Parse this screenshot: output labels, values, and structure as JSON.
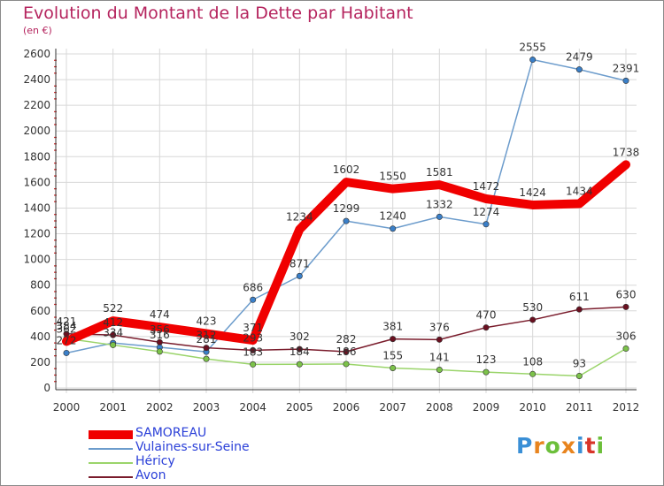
{
  "title": "Evolution du Montant de la Dette par Habitant",
  "unit": "(en €)",
  "logo": {
    "text": "Proxiti",
    "letters": [
      {
        "ch": "P",
        "color": "#3a8fd6"
      },
      {
        "ch": "r",
        "color": "#e8841e"
      },
      {
        "ch": "o",
        "color": "#6cbf3a"
      },
      {
        "ch": "x",
        "color": "#e8841e"
      },
      {
        "ch": "i",
        "color": "#3a8fd6"
      },
      {
        "ch": "t",
        "color": "#d8352a"
      },
      {
        "ch": "i",
        "color": "#6cbf3a"
      }
    ]
  },
  "chart_data": {
    "type": "line",
    "title": "Evolution du Montant de la Dette par Habitant",
    "ylabel": "(en €)",
    "x": [
      "2000",
      "2001",
      "2002",
      "2003",
      "2004",
      "2005",
      "2006",
      "2007",
      "2008",
      "2009",
      "2010",
      "2011",
      "2012"
    ],
    "ylim": [
      0,
      2600
    ],
    "yticks": [
      0,
      200,
      400,
      600,
      800,
      1000,
      1200,
      1400,
      1600,
      1800,
      2000,
      2200,
      2400,
      2600
    ],
    "grid": true,
    "legend_position": "bottom-left",
    "series": [
      {
        "name": "SAMOREAU",
        "color": "#f00000",
        "width": 10,
        "marker": "none",
        "values": [
          362,
          522,
          474,
          423,
          371,
          1234,
          1602,
          1550,
          1581,
          1472,
          1424,
          1434,
          1738
        ],
        "labels": [
          "362",
          "522",
          "474",
          "423",
          "371",
          "1234",
          "1602",
          "1550",
          "1581",
          "1472",
          "1424",
          "1434",
          "1738"
        ]
      },
      {
        "name": "Vulaines-sur-Seine",
        "color": "#6c9ccc",
        "marker_color": "#3a7fc8",
        "width": 1.5,
        "marker": "circle",
        "values": [
          272,
          350,
          316,
          281,
          686,
          871,
          1299,
          1240,
          1332,
          1274,
          2555,
          2479,
          2391
        ],
        "labels": [
          "272",
          "",
          "316",
          "281",
          "686",
          "871",
          "1299",
          "1240",
          "1332",
          "1274",
          "2555",
          "2479",
          "2391"
        ]
      },
      {
        "name": "Héricy",
        "color": "#9ad46a",
        "marker_color": "#7cc24a",
        "width": 1.5,
        "marker": "circle",
        "values": [
          384,
          334,
          283,
          226,
          183,
          184,
          186,
          155,
          141,
          123,
          108,
          93,
          306
        ],
        "labels": [
          "384",
          "334",
          "",
          "",
          "183",
          "184",
          "186",
          "155",
          "141",
          "123",
          "108",
          "93",
          "306"
        ]
      },
      {
        "name": "Avon",
        "color": "#7a1c2c",
        "marker_color": "#6a1020",
        "width": 1.5,
        "marker": "circle",
        "values": [
          421,
          412,
          356,
          312,
          293,
          302,
          282,
          381,
          376,
          470,
          530,
          611,
          630
        ],
        "labels": [
          "421",
          "412",
          "356",
          "312",
          "293",
          "302",
          "282",
          "381",
          "376",
          "470",
          "530",
          "611",
          "630"
        ]
      }
    ]
  }
}
